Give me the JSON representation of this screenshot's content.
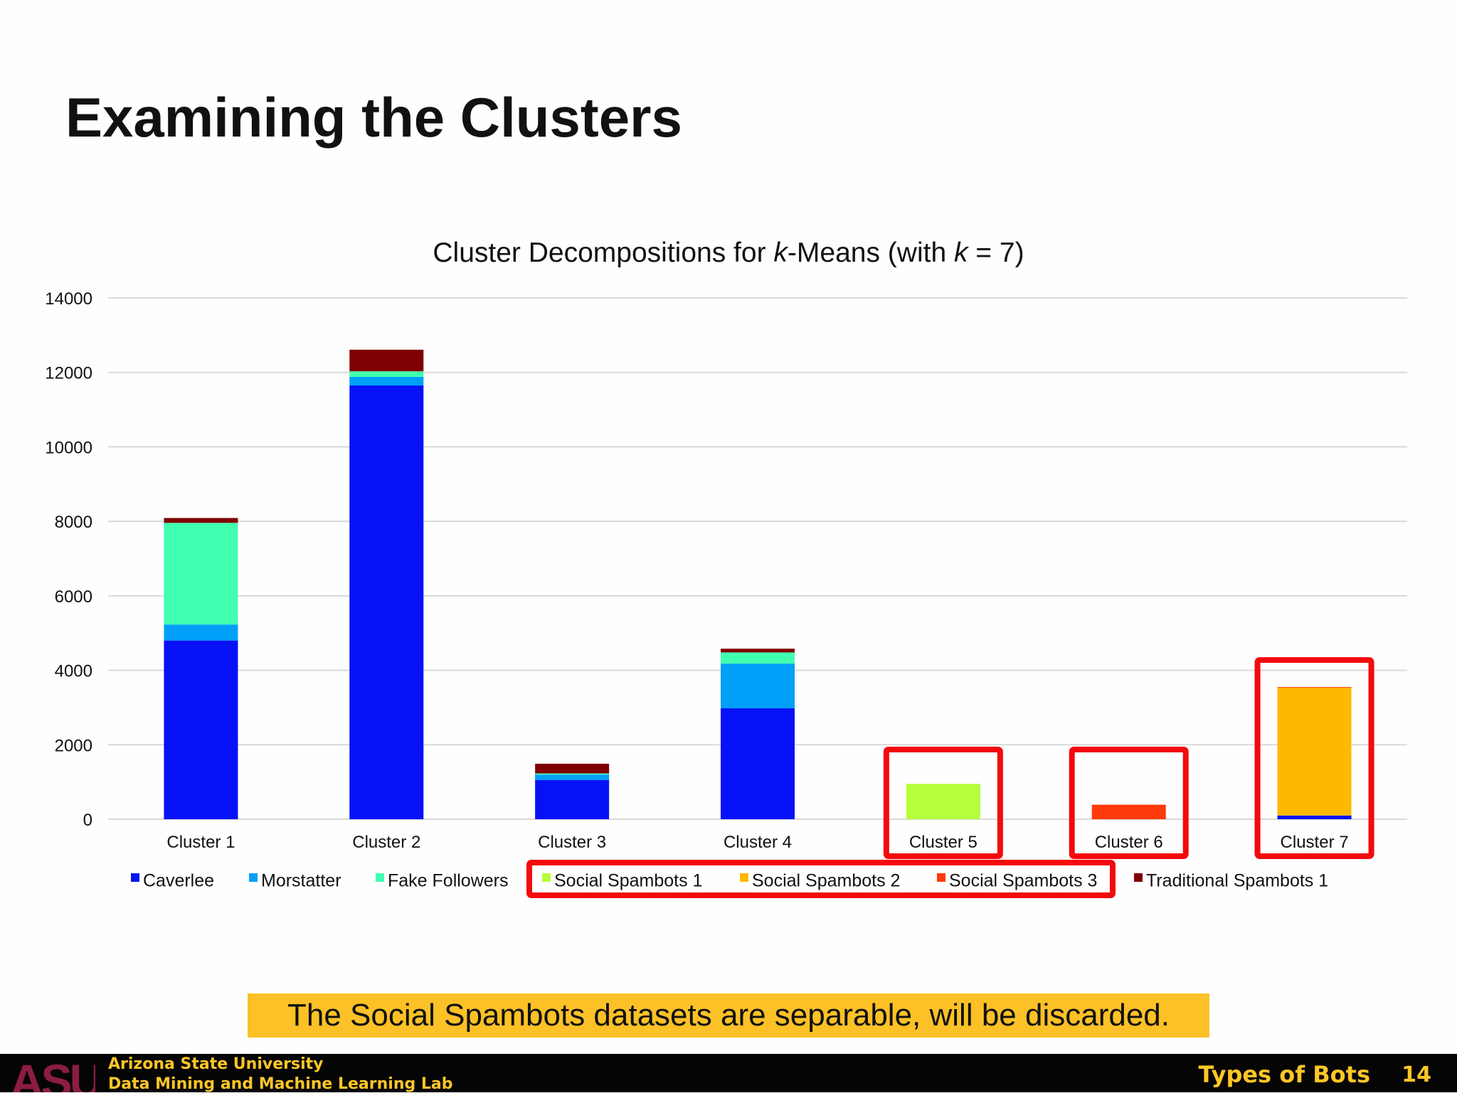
{
  "slide": {
    "title": "Examining the Clusters",
    "banner": "The Social Spambots datasets are separable, will be discarded.",
    "footer": {
      "logo": "ASU",
      "university": "Arizona State University",
      "lab": "Data Mining and Machine Learning Lab",
      "section": "Types of Bots",
      "page": "14"
    }
  },
  "chart_title": {
    "prefix": "Cluster Decompositions for ",
    "k1": "k",
    "middle": "-Means (with ",
    "k2": "k",
    "suffix": " = 7)"
  },
  "chart_data": {
    "type": "bar",
    "stacked": true,
    "title": "Cluster Decompositions for k-Means (with k = 7)",
    "xlabel": "",
    "ylabel": "",
    "ylim": [
      0,
      14000
    ],
    "yticks": [
      0,
      2000,
      4000,
      6000,
      8000,
      10000,
      12000,
      14000
    ],
    "ytick_labels": [
      "0",
      "2000",
      "4000",
      "6000",
      "8000",
      "10000",
      "12000",
      "14000"
    ],
    "grid": true,
    "legend_position": "bottom",
    "categories": [
      "Cluster 1",
      "Cluster 2",
      "Cluster 3",
      "Cluster 4",
      "Cluster 5",
      "Cluster 6",
      "Cluster 7"
    ],
    "series": [
      {
        "name": "Caverlee",
        "color": "#0612f5",
        "values": [
          4800,
          11650,
          1050,
          2980,
          0,
          0,
          100
        ]
      },
      {
        "name": "Morstatter",
        "color": "#00a0f8",
        "values": [
          430,
          230,
          150,
          1200,
          0,
          0,
          0
        ]
      },
      {
        "name": "Fake Followers",
        "color": "#40ffb0",
        "values": [
          2730,
          150,
          30,
          300,
          0,
          0,
          0
        ]
      },
      {
        "name": "Social Spambots 1",
        "color": "#b5ff3c",
        "values": [
          0,
          0,
          0,
          0,
          950,
          0,
          0
        ]
      },
      {
        "name": "Social Spambots 2",
        "color": "#ffb800",
        "values": [
          0,
          0,
          0,
          0,
          0,
          0,
          3440
        ]
      },
      {
        "name": "Social Spambots 3",
        "color": "#ff3a0a",
        "values": [
          0,
          0,
          0,
          0,
          0,
          390,
          10
        ]
      },
      {
        "name": "Traditional Spambots 1",
        "color": "#7f0000",
        "values": [
          130,
          580,
          260,
          100,
          0,
          0,
          0
        ]
      }
    ],
    "highlighted_categories": [
      "Cluster 5",
      "Cluster 6",
      "Cluster 7"
    ],
    "highlighted_legend": [
      "Social Spambots 1",
      "Social Spambots 2",
      "Social Spambots 3"
    ]
  }
}
